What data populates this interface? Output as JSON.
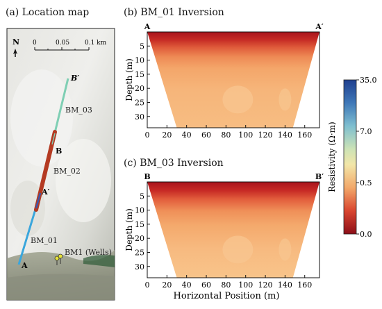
{
  "panels": {
    "a": {
      "title": "(a) Location map"
    },
    "b": {
      "title": "(b) BM_01 Inversion"
    },
    "c": {
      "title": "(c) BM_03 Inversion"
    }
  },
  "map": {
    "north_label": "N",
    "scale_ticks": [
      "0",
      "0.05",
      "0.1 km"
    ],
    "labels": {
      "b_prime": "B′",
      "bm03": "BM_03",
      "b": "B",
      "bm02": "BM_02",
      "a_prime": "A′",
      "bm01": "BM_01",
      "a": "A",
      "wells": "BM1 (Wells)"
    },
    "colors": {
      "bm01": "#3aa6dc",
      "bm03": "#7fcfb4",
      "bm02": "#b43a22",
      "bm02_inner": "#3f56a8"
    }
  },
  "colorbar": {
    "title": "Resistivity (Ω·m)",
    "ticks": [
      "35.0",
      "7.0",
      "0.5",
      "0.0"
    ]
  },
  "chart_data": [
    {
      "type": "heatmap",
      "title": "(b) BM_01 Inversion",
      "end_labels": [
        "A",
        "A′"
      ],
      "xlabel": "",
      "ylabel": "Depth (m)",
      "xticks": [
        "0",
        "20",
        "40",
        "60",
        "80",
        "100",
        "120",
        "140",
        "160"
      ],
      "yticks": [
        "5",
        "10",
        "15",
        "20",
        "25",
        "30"
      ],
      "xlim": [
        0,
        175
      ],
      "ylim": [
        0,
        34
      ]
    },
    {
      "type": "heatmap",
      "title": "(c) BM_03 Inversion",
      "end_labels": [
        "B",
        "B′"
      ],
      "xlabel": "Horizontal Position (m)",
      "ylabel": "Depth (m)",
      "xticks": [
        "0",
        "20",
        "40",
        "60",
        "80",
        "100",
        "120",
        "140",
        "160"
      ],
      "yticks": [
        "5",
        "10",
        "15",
        "20",
        "25",
        "30"
      ],
      "xlim": [
        0,
        175
      ],
      "ylim": [
        0,
        34
      ]
    }
  ]
}
